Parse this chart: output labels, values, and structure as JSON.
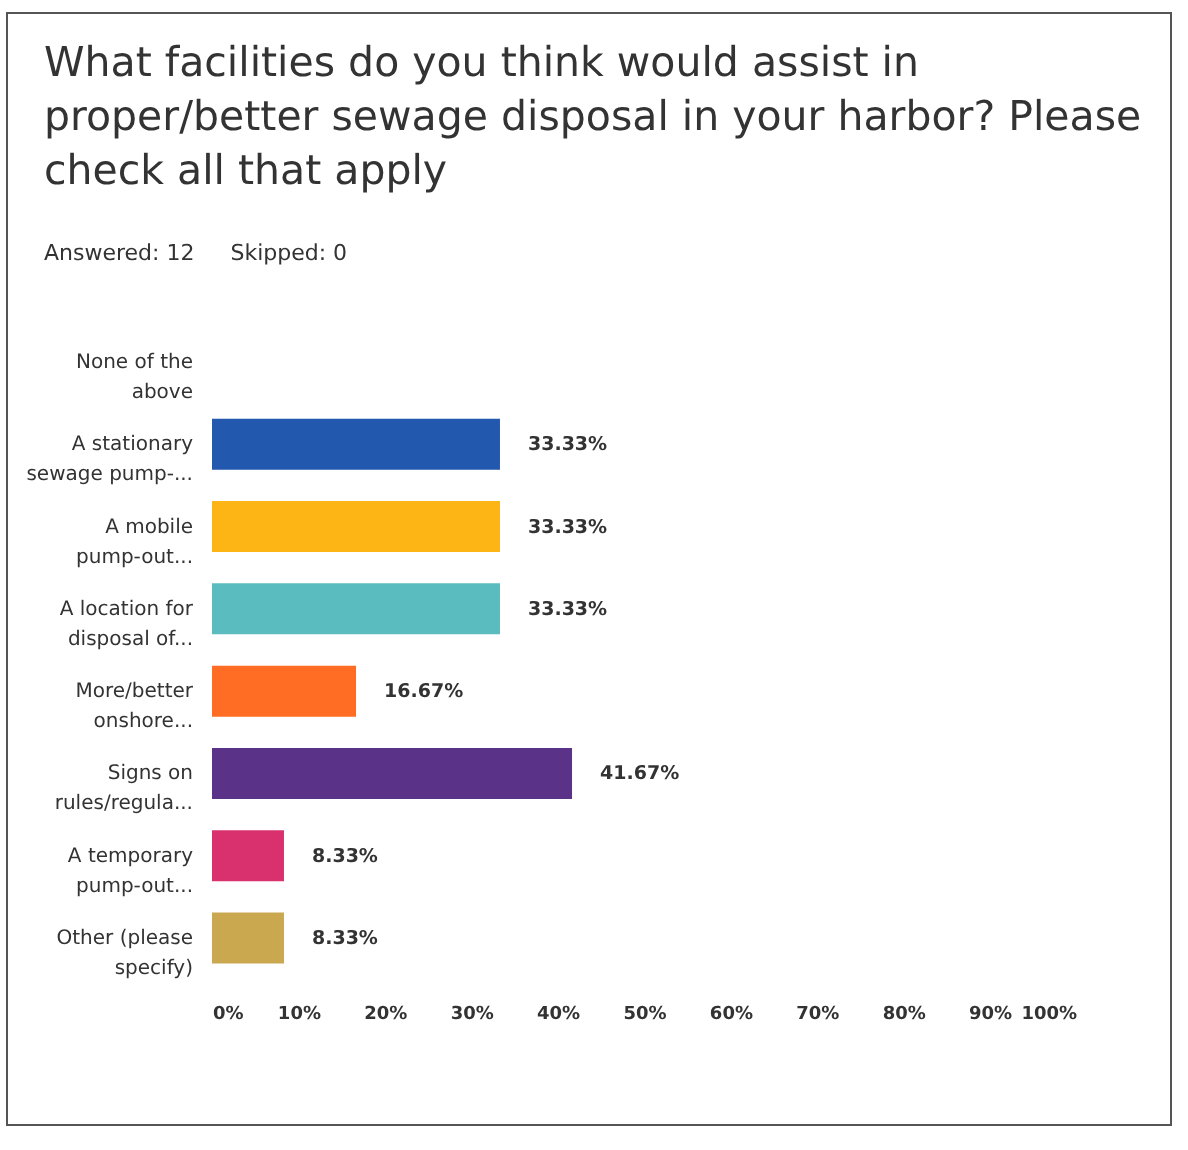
{
  "chart_data": {
    "type": "bar",
    "orientation": "horizontal",
    "title": "What facilities do you think would assist in proper/better sewage disposal in your harbor? Please check all that apply",
    "annotations": [
      "Answered: 12",
      "Skipped: 0"
    ],
    "categories": [
      "None of the above",
      "A stationary sewage pump-...",
      "A mobile pump-out...",
      "A location for disposal of...",
      "More/better onshore...",
      "Signs on rules/regula...",
      "A temporary pump-out...",
      "Other (please specify)"
    ],
    "values": [
      0,
      33.33,
      33.33,
      33.33,
      16.67,
      41.67,
      8.33,
      8.33
    ],
    "colors": [
      "#2258ad",
      "#2258ad",
      "#fdb515",
      "#5bbcbf",
      "#ff6c23",
      "#5a3389",
      "#d8316d",
      "#c9a850"
    ],
    "value_labels": [
      null,
      "33.33%",
      "33.33%",
      "33.33%",
      "16.67%",
      "41.67%",
      "8.33%",
      "8.33%"
    ],
    "xlim": [
      0,
      100
    ],
    "xticks": [
      {
        "value": 0,
        "label": "0%"
      },
      {
        "value": 10,
        "label": "10%"
      },
      {
        "value": 20,
        "label": "20%"
      },
      {
        "value": 30,
        "label": "30%"
      },
      {
        "value": 40,
        "label": "40%"
      },
      {
        "value": 50,
        "label": "50%"
      },
      {
        "value": 60,
        "label": "60%"
      },
      {
        "value": 70,
        "label": "70%"
      },
      {
        "value": 80,
        "label": "80%"
      },
      {
        "value": 90,
        "label": "90%"
      },
      {
        "value": 100,
        "label": "100%"
      }
    ],
    "grid": false,
    "legend": false
  }
}
